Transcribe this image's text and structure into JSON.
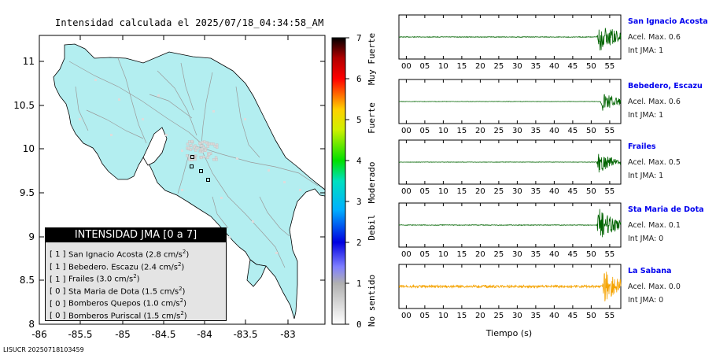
{
  "map": {
    "title": "Intensidad calculada el 2025/07/18_04:34:58_AM",
    "footer": "LISUCR 202507181034​59",
    "x_ticks": [
      "-86",
      "-85.5",
      "-85",
      "-84.5",
      "-84",
      "-83.5",
      "-83"
    ],
    "y_ticks": [
      "11",
      "10.5",
      "10",
      "9.5",
      "9",
      "8.5",
      "8"
    ],
    "land_color": "#b3eef0",
    "xlim": [
      -86.0,
      -82.5
    ],
    "ylim": [
      8.0,
      11.3
    ]
  },
  "legend": {
    "title": "INTENSIDAD JMA [0 a 7]",
    "items": [
      {
        "level": "[ 1 ]",
        "station": "San Ignacio Acosta",
        "value": "(2.8 cm/s",
        "sup": "2",
        "close": ")"
      },
      {
        "level": "[ 1 ]",
        "station": "Bebedero. Escazu",
        "value": "(2.4 cm/s",
        "sup": "2",
        "close": ")"
      },
      {
        "level": "[ 1 ]",
        "station": "Frailes",
        "value": "(3.0 cm/s",
        "sup": "2",
        "close": ")"
      },
      {
        "level": "[ 0 ]",
        "station": "Sta Maria de Dota",
        "value": "(1.5 cm/s",
        "sup": "2",
        "close": ")"
      },
      {
        "level": "[ 0 ]",
        "station": "Bomberos Quepos",
        "value": "(1.0 cm/s",
        "sup": "2",
        "close": ")"
      },
      {
        "level": "[ 0 ]",
        "station": "Bomberos Puriscal",
        "value": "(1.5 cm/s",
        "sup": "2",
        "close": ")"
      }
    ]
  },
  "colorbar": {
    "ticks": [
      "0",
      "1",
      "2",
      "3",
      "4",
      "5",
      "6",
      "7"
    ],
    "labels": [
      "No sentido",
      "Debil",
      "Moderado",
      "Fuerte",
      "Muy Fuerte"
    ]
  },
  "chart_data": [
    {
      "type": "line",
      "panel": "seismogram",
      "station": "San Ignacio Acosta",
      "color": "#006400",
      "accel_text": "Acel. Max. 0.6",
      "int_text": "Int JMA: 1",
      "onset_s": 51.5,
      "peak": 0.9
    },
    {
      "type": "line",
      "panel": "seismogram",
      "station": "Bebedero, Escazu",
      "color": "#006400",
      "accel_text": "Acel. Max. 0.6",
      "int_text": "Int JMA: 1",
      "onset_s": 52.5,
      "peak": 0.55
    },
    {
      "type": "line",
      "panel": "seismogram",
      "station": "Frailes",
      "color": "#006400",
      "accel_text": "Acel. Max. 0.5",
      "int_text": "Int JMA: 1",
      "onset_s": 51.5,
      "peak": 0.55
    },
    {
      "type": "line",
      "panel": "seismogram",
      "station": "Sta Maria de Dota",
      "color": "#006400",
      "accel_text": "Acel. Max. 0.1",
      "int_text": "Int JMA: 0",
      "onset_s": 51.5,
      "peak": 0.9
    },
    {
      "type": "line",
      "panel": "seismogram",
      "station": "La Sabana",
      "color": "#f5a300",
      "accel_text": "Acel. Max. 0.0",
      "int_text": "Int JMA: 0",
      "onset_s": 53.0,
      "peak": 0.95
    }
  ],
  "seismo_axis": {
    "x_ticks": [
      "00",
      "05",
      "10",
      "15",
      "20",
      "25",
      "30",
      "35",
      "40",
      "45",
      "50",
      "55"
    ],
    "xlim": [
      -2,
      58
    ],
    "xlabel": "Tiempo (s)"
  }
}
